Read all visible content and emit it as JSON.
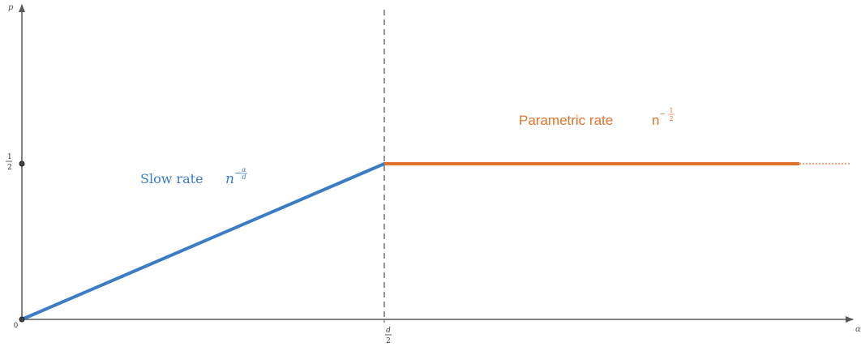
{
  "axes": {
    "y_label": "p",
    "x_label": "α",
    "origin_label": "0"
  },
  "ticks": {
    "y_half": {
      "num": "1",
      "den": "2"
    },
    "x_mid": {
      "num": "d",
      "den": "2"
    }
  },
  "regions": {
    "slow": {
      "label": "Slow rate",
      "base": "n",
      "exp_num": "α",
      "exp_den": "d",
      "color": "#3b7cc4"
    },
    "parametric": {
      "label": "Parametric rate",
      "base": "n",
      "exp_num": "1",
      "exp_den": "2",
      "color": "#e0732e"
    }
  },
  "colors": {
    "axis": "#595959",
    "divider": "#7a7a7a",
    "point": "#222222"
  }
}
